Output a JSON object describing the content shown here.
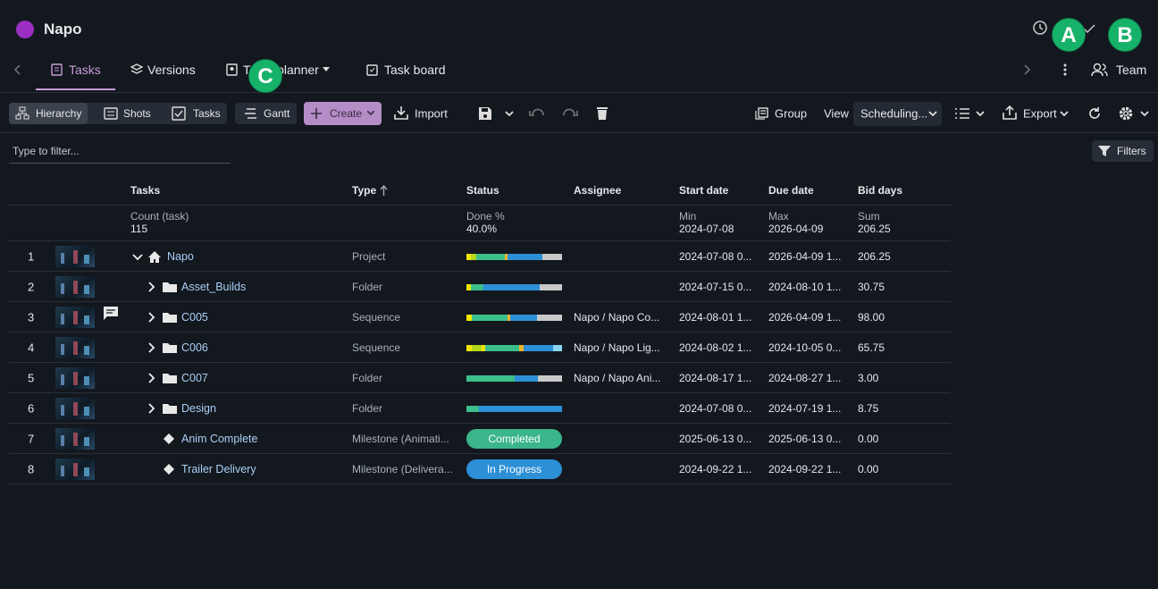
{
  "header": {
    "title": "Napo",
    "team": "Team"
  },
  "badges": [
    "A",
    "B",
    "C"
  ],
  "tabs": [
    "Tasks",
    "Versions",
    "Team planner",
    "Task board"
  ],
  "toolbar": {
    "hierarchy": "Hierarchy",
    "shots": "Shots",
    "tasks": "Tasks",
    "gantt": "Gantt",
    "create": "Create",
    "import": "Import",
    "group": "Group",
    "view": "View",
    "view_value": "Scheduling...",
    "export": "Export"
  },
  "filter": {
    "placeholder": "Type to filter...",
    "button": "Filters"
  },
  "table": {
    "columns": [
      "Tasks",
      "Type",
      "Status",
      "Assignee",
      "Start date",
      "Due date",
      "Bid days"
    ],
    "summary": {
      "tasks": {
        "label": "Count (task)",
        "value": "115"
      },
      "status": {
        "label": "Done %",
        "value": "40.0%"
      },
      "start": {
        "label": "Min",
        "value": "2024-07-08"
      },
      "due": {
        "label": "Max",
        "value": "2026-04-09"
      },
      "bid": {
        "label": "Sum",
        "value": "206.25"
      }
    },
    "rows": [
      {
        "number": "1",
        "name": "Napo",
        "type": "Project",
        "start": "2024-07-08 0...",
        "due": "2026-04-09 1...",
        "bid": "206.25"
      },
      {
        "number": "2",
        "name": "Asset_Builds",
        "type": "Folder",
        "start": "2024-07-15 0...",
        "due": "2024-08-10 1...",
        "bid": "30.75"
      },
      {
        "number": "3",
        "name": "C005",
        "type": "Sequence",
        "assignee": "Napo / Napo Co...",
        "start": "2024-08-01 1...",
        "due": "2026-04-09 1...",
        "bid": "98.00"
      },
      {
        "number": "4",
        "name": "C006",
        "type": "Sequence",
        "assignee": "Napo / Napo Lig...",
        "start": "2024-08-02 1...",
        "due": "2024-10-05 0...",
        "bid": "65.75"
      },
      {
        "number": "5",
        "name": "C007",
        "type": "Folder",
        "assignee": "Napo / Napo Ani...",
        "start": "2024-08-17 1...",
        "due": "2024-08-27 1...",
        "bid": "3.00"
      },
      {
        "number": "6",
        "name": "Design",
        "type": "Folder",
        "start": "2024-07-08 0...",
        "due": "2024-07-19 1...",
        "bid": "8.75"
      },
      {
        "number": "7",
        "name": "Anim Complete",
        "type": "Milestone (Animati...",
        "status_label": "Completed",
        "start": "2025-06-13 0...",
        "due": "2025-06-13 0...",
        "bid": "0.00"
      },
      {
        "number": "8",
        "name": "Trailer Delivery",
        "type": "Milestone (Delivera...",
        "status_label": "In Progress",
        "start": "2024-09-22 1...",
        "due": "2024-09-22 1...",
        "bid": "0.00"
      }
    ]
  }
}
